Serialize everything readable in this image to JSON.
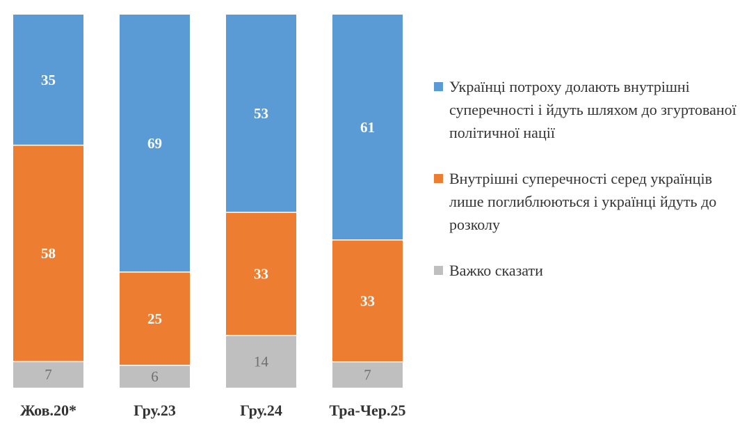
{
  "chart_data": {
    "type": "bar",
    "stacked": true,
    "percent": true,
    "categories": [
      "Жов.20*",
      "Гру.23",
      "Гру.24",
      "Тра-Чер.25"
    ],
    "series": [
      {
        "name": "Українці потроху долають внутрішні суперечності і йдуть шляхом до згуртованої політичної нації",
        "color": "#5B9BD5",
        "values": [
          35,
          69,
          53,
          61
        ]
      },
      {
        "name": "Внутрішні суперечності серед українців лише поглиблюються і українці йдуть до розколу",
        "color": "#ED7D31",
        "values": [
          58,
          25,
          33,
          33
        ]
      },
      {
        "name": "Важко сказати",
        "color": "#BFBFBF",
        "values": [
          7,
          6,
          14,
          7
        ]
      }
    ],
    "stack_order": "top-to-bottom",
    "legend_position": "right",
    "grid": false,
    "ylim": [
      0,
      100
    ]
  }
}
